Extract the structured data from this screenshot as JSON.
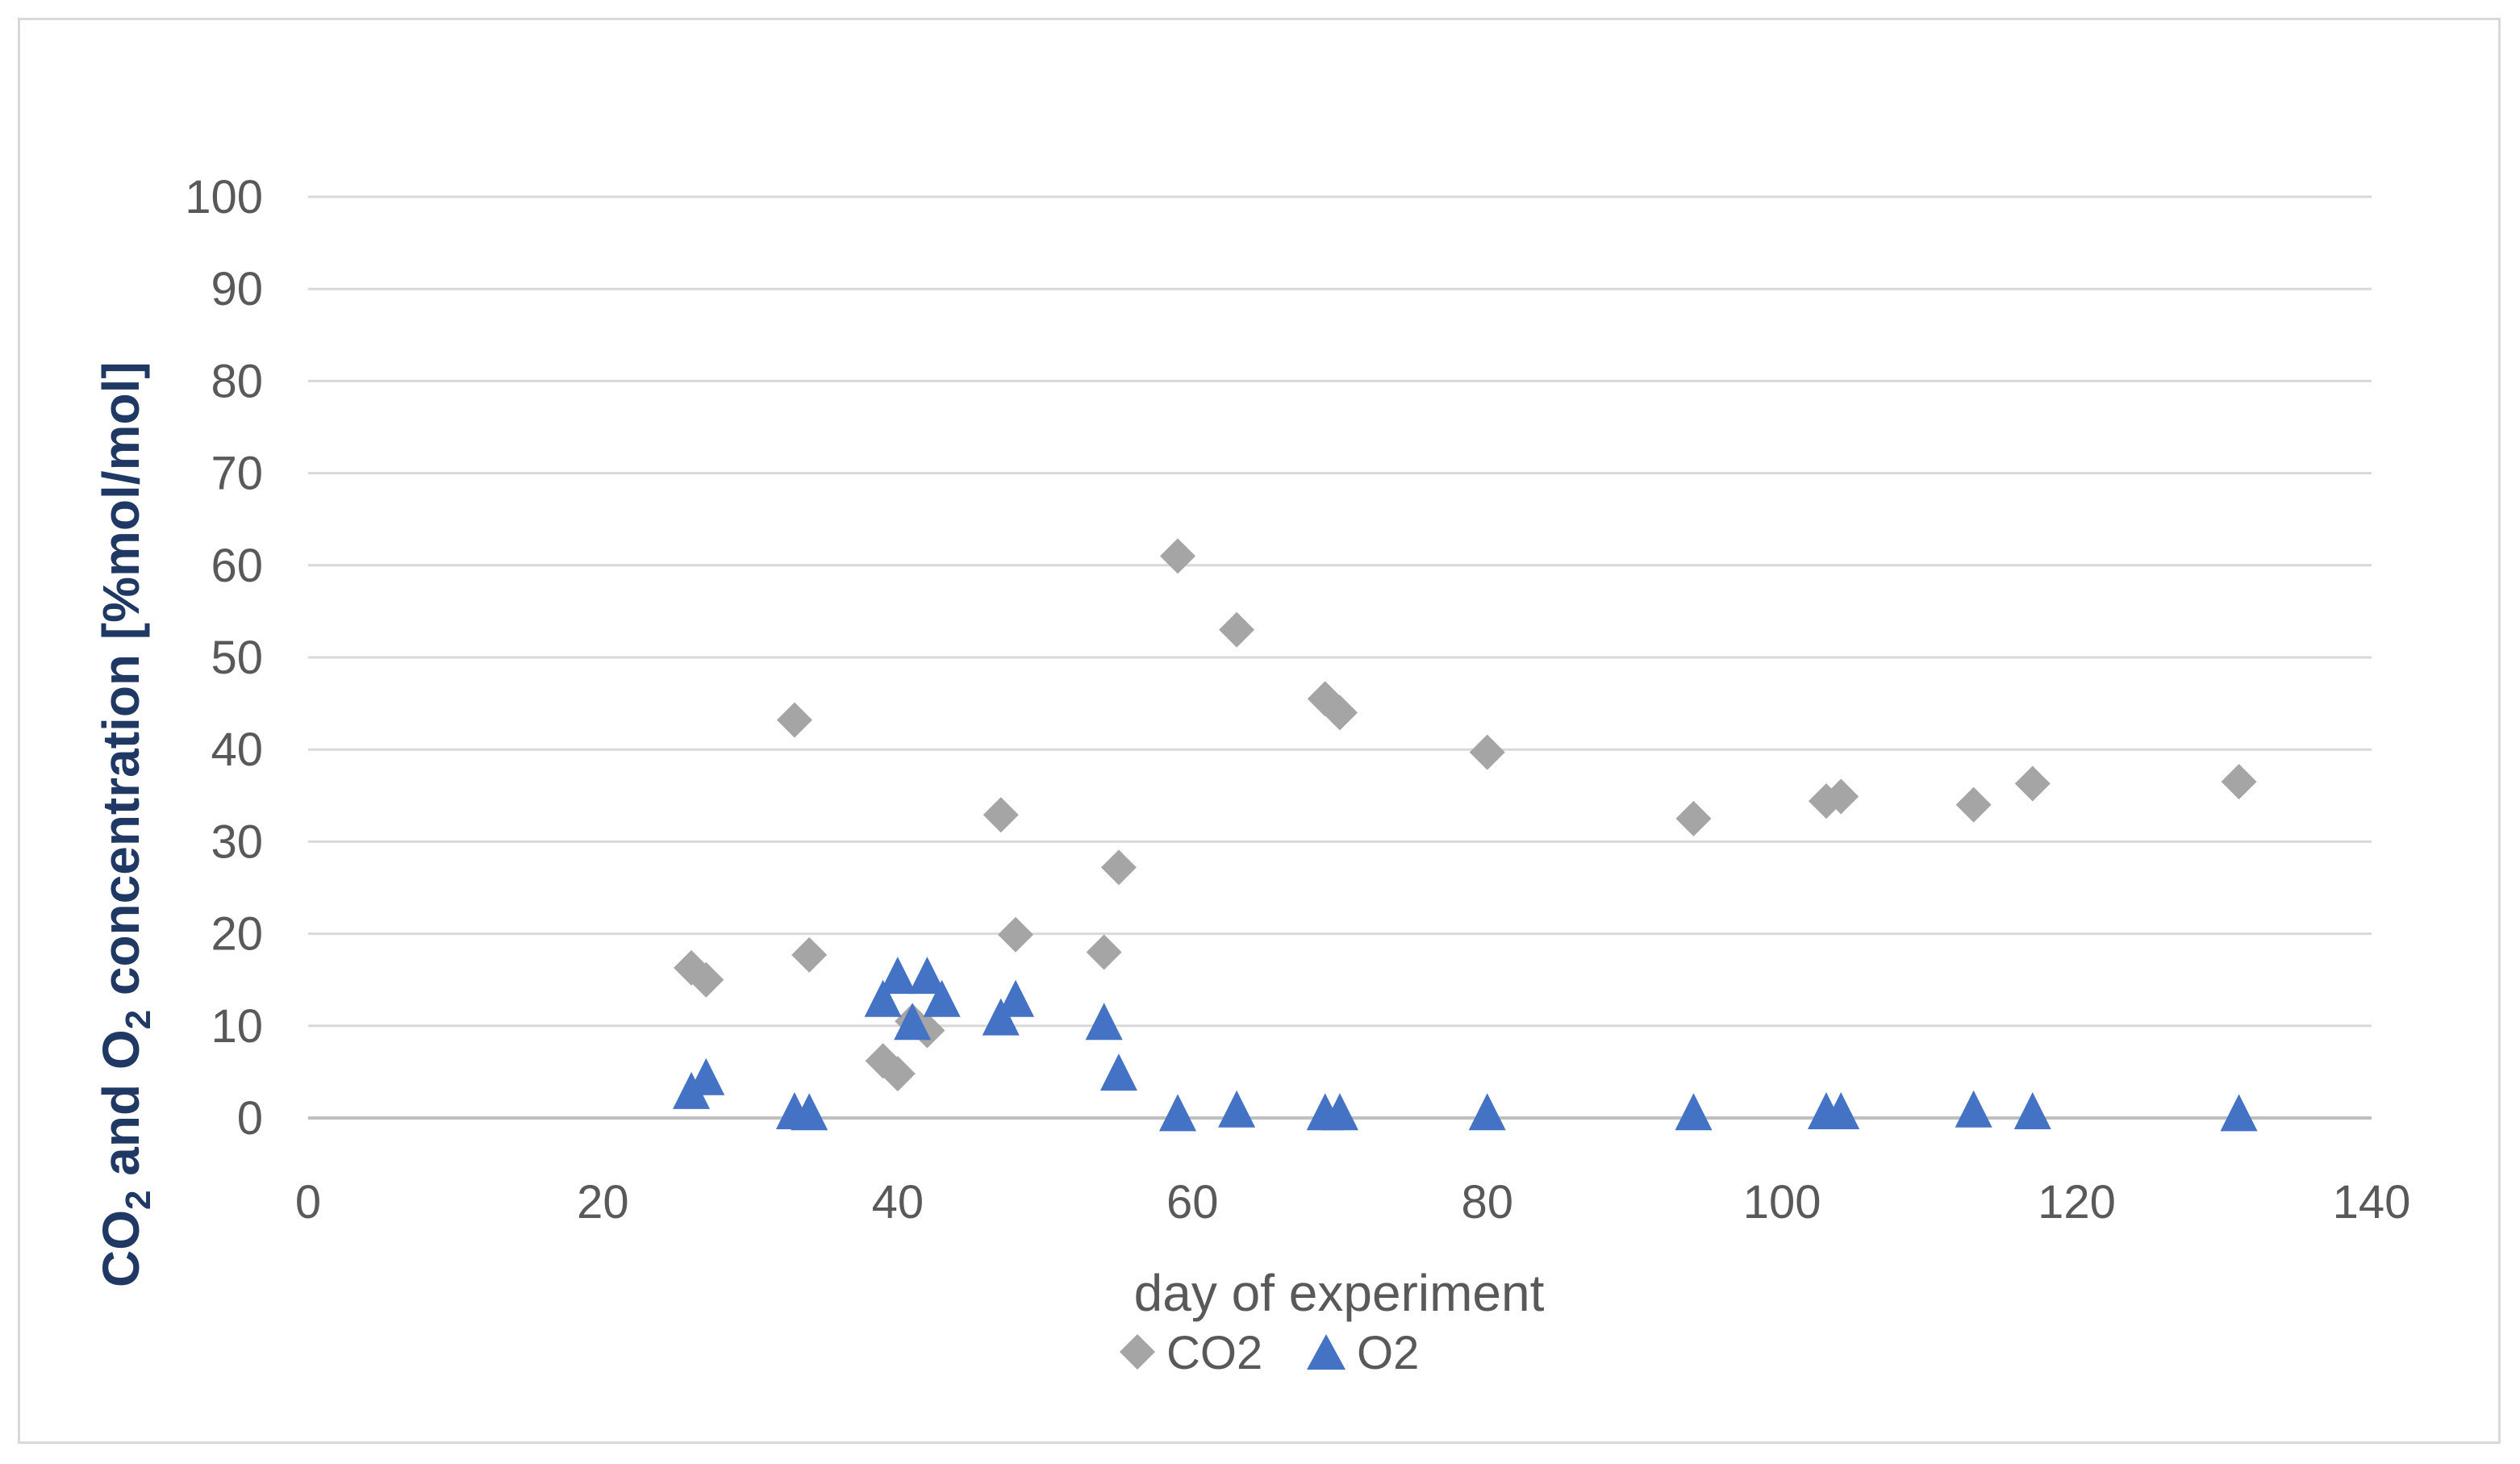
{
  "chart_data": {
    "type": "scatter",
    "title": "",
    "xlabel": "day of experiment",
    "ylabel": {
      "prefix": "CO",
      "sub1": "2",
      "middle": " and O",
      "sub2": "2",
      "suffix": " concentration [%mol/mol]"
    },
    "xlim": [
      0,
      140
    ],
    "ylim": [
      0,
      100
    ],
    "x_ticks": [
      0,
      20,
      40,
      60,
      80,
      100,
      120,
      140
    ],
    "y_ticks": [
      0,
      10,
      20,
      30,
      40,
      50,
      60,
      70,
      80,
      90,
      100
    ],
    "grid": true,
    "legend_position": "bottom",
    "series": [
      {
        "name": "CO2",
        "marker": "diamond",
        "color": "#a5a5a5",
        "points": [
          [
            26,
            16.3
          ],
          [
            27,
            15
          ],
          [
            33,
            43.2
          ],
          [
            34,
            17.7
          ],
          [
            39,
            6.2
          ],
          [
            40,
            4.8
          ],
          [
            41,
            10.5
          ],
          [
            42,
            9.5
          ],
          [
            47,
            32.9
          ],
          [
            48,
            19.9
          ],
          [
            54,
            18
          ],
          [
            55,
            27.2
          ],
          [
            59,
            61
          ],
          [
            63,
            53
          ],
          [
            69,
            45.5
          ],
          [
            70,
            44
          ],
          [
            80,
            39.7
          ],
          [
            94,
            32.5
          ],
          [
            103,
            34.4
          ],
          [
            104,
            34.9
          ],
          [
            113,
            34
          ],
          [
            117,
            36.3
          ],
          [
            131,
            36.5
          ]
        ]
      },
      {
        "name": "O2",
        "marker": "triangle",
        "color": "#4472c4",
        "points": [
          [
            26,
            2.5
          ],
          [
            27,
            4
          ],
          [
            33,
            0.3
          ],
          [
            34,
            0.2
          ],
          [
            39,
            12.5
          ],
          [
            40,
            15
          ],
          [
            41,
            10
          ],
          [
            42,
            15
          ],
          [
            43,
            12.5
          ],
          [
            47,
            10.5
          ],
          [
            48,
            12.5
          ],
          [
            54,
            10
          ],
          [
            55,
            4.5
          ],
          [
            59,
            0.1
          ],
          [
            63,
            0.5
          ],
          [
            69,
            0.2
          ],
          [
            70,
            0.2
          ],
          [
            80,
            0.2
          ],
          [
            94,
            0.2
          ],
          [
            103,
            0.3
          ],
          [
            104,
            0.3
          ],
          [
            113,
            0.5
          ],
          [
            117,
            0.3
          ],
          [
            131,
            0.1
          ]
        ]
      }
    ]
  }
}
